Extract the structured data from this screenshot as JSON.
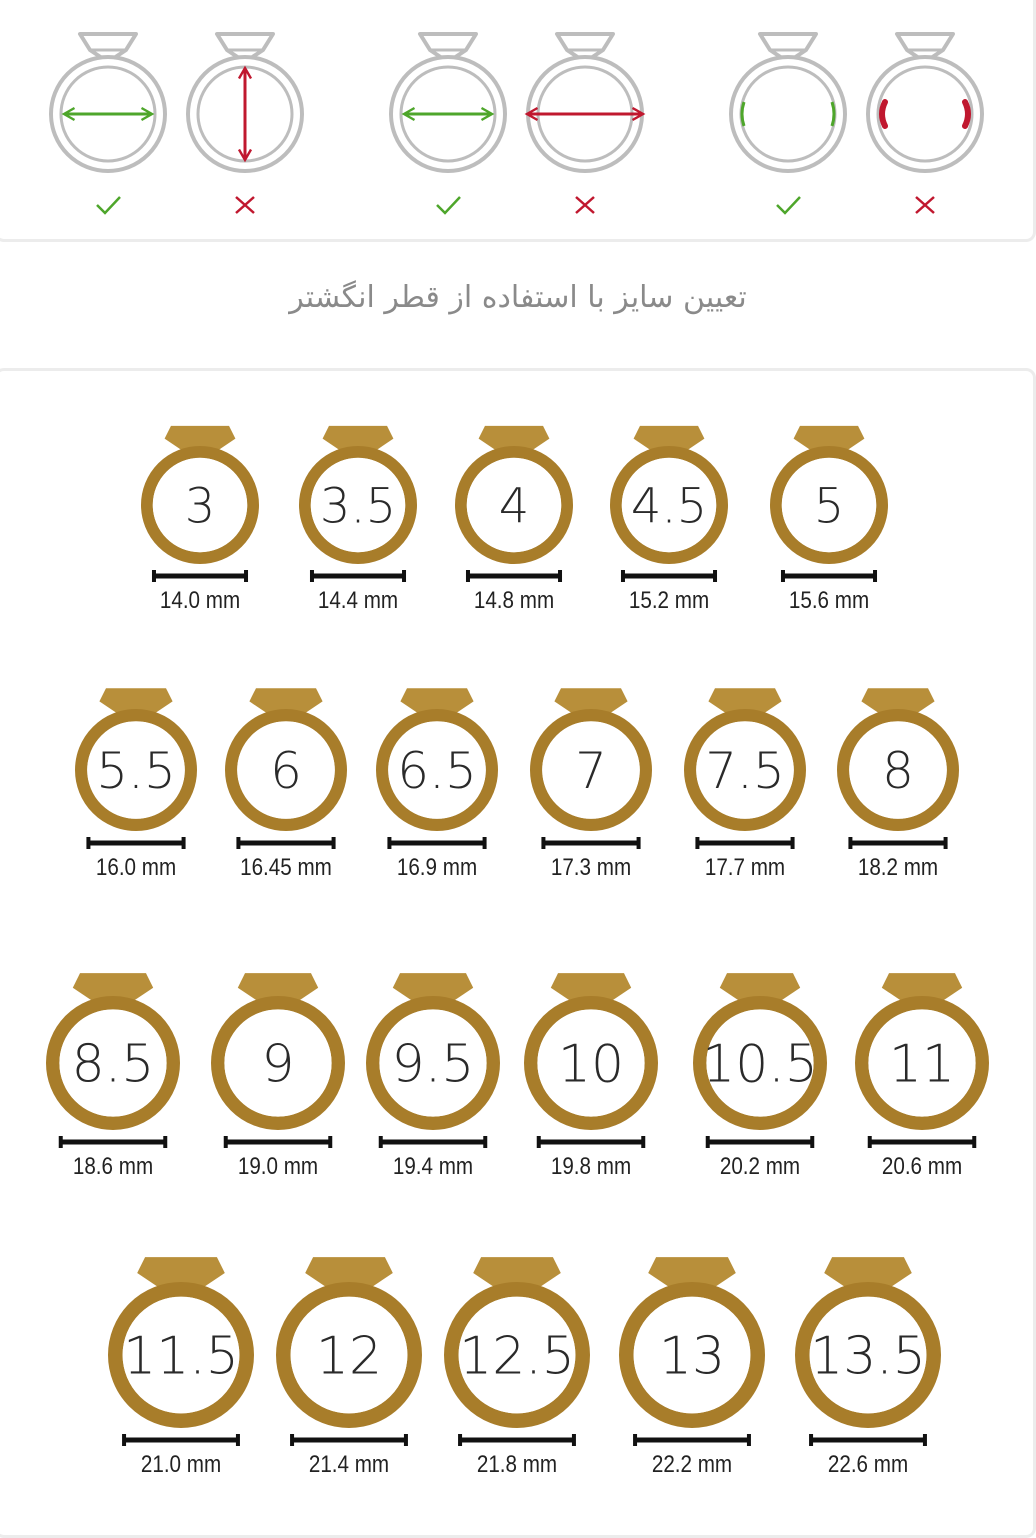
{
  "caption": "تعیین سایز با استفاده از قطر انگشتر",
  "colors": {
    "gold": "#a87d2a",
    "gold_dark": "#9a6f1f",
    "gold_light": "#b88f3a",
    "green": "#4ea62b",
    "red": "#c0182f",
    "ring_grey": "#bdbdbd"
  },
  "guide": {
    "pairs": [
      {
        "good_marker": "✓",
        "bad_marker": "×",
        "good_type": "arrow-horizontal-inner",
        "bad_type": "arrow-vertical"
      },
      {
        "good_marker": "✓",
        "bad_marker": "×",
        "good_type": "arrow-horizontal-inner",
        "bad_type": "arrow-horizontal-outer"
      },
      {
        "good_marker": "✓",
        "bad_marker": "×",
        "good_type": "marks-inner",
        "bad_type": "marks-outer"
      }
    ]
  },
  "rows": [
    [
      {
        "size": "3",
        "mm": "14.0 mm"
      },
      {
        "size": "3.5",
        "mm": "14.4 mm"
      },
      {
        "size": "4",
        "mm": "14.8 mm"
      },
      {
        "size": "4.5",
        "mm": "15.2 mm"
      },
      {
        "size": "5",
        "mm": "15.6 mm"
      }
    ],
    [
      {
        "size": "5.5",
        "mm": "16.0 mm"
      },
      {
        "size": "6",
        "mm": "16.45 mm"
      },
      {
        "size": "6.5",
        "mm": "16.9 mm"
      },
      {
        "size": "7",
        "mm": "17.3 mm"
      },
      {
        "size": "7.5",
        "mm": "17.7 mm"
      },
      {
        "size": "8",
        "mm": "18.2 mm"
      }
    ],
    [
      {
        "size": "8.5",
        "mm": "18.6 mm"
      },
      {
        "size": "9",
        "mm": "19.0 mm"
      },
      {
        "size": "9.5",
        "mm": "19.4 mm"
      },
      {
        "size": "10",
        "mm": "19.8 mm"
      },
      {
        "size": "10.5",
        "mm": "20.2 mm"
      },
      {
        "size": "11",
        "mm": "20.6 mm"
      }
    ],
    [
      {
        "size": "11.5",
        "mm": "21.0 mm"
      },
      {
        "size": "12",
        "mm": "21.4 mm"
      },
      {
        "size": "12.5",
        "mm": "21.8 mm"
      },
      {
        "size": "13",
        "mm": "22.2 mm"
      },
      {
        "size": "13.5",
        "mm": "22.6 mm"
      }
    ]
  ]
}
